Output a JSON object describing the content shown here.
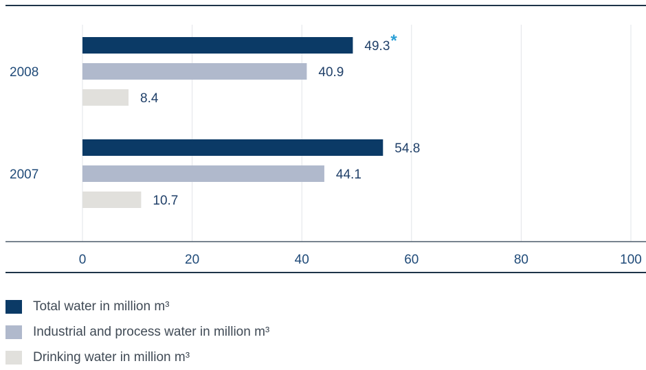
{
  "chart_data": {
    "type": "bar",
    "orientation": "horizontal",
    "categories": [
      "2008",
      "2007"
    ],
    "series": [
      {
        "name": "Total water in million m³",
        "values": [
          49.3,
          54.8
        ],
        "color": "#0b3a66",
        "labels": [
          "49.3",
          "54.8"
        ]
      },
      {
        "name": "Industrial and process water in million m³",
        "values": [
          40.9,
          44.1
        ],
        "color": "#b0b9cc",
        "labels": [
          "40.9",
          "44.1"
        ]
      },
      {
        "name": "Drinking water in million m³",
        "values": [
          8.4,
          10.7
        ],
        "color": "#e1e0dc",
        "labels": [
          "8.4",
          "10.7"
        ]
      }
    ],
    "annotation": {
      "text": "*",
      "category": "2008",
      "series": 0,
      "color": "#2a9fd6"
    },
    "xlim": [
      0,
      100
    ],
    "xticks": [
      0,
      20,
      40,
      60,
      80,
      100
    ],
    "grid": true,
    "legend_position": "bottom-left"
  }
}
